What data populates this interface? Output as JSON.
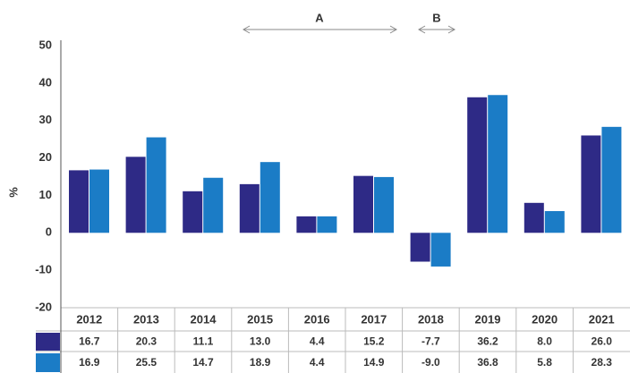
{
  "chart_data": {
    "type": "bar",
    "y_label": "%",
    "annotations": [
      "A",
      "B"
    ],
    "categories": [
      "2012",
      "2013",
      "2014",
      "2015",
      "2016",
      "2017",
      "2018",
      "2019",
      "2020",
      "2021"
    ],
    "series": [
      {
        "color": "#2e2a86",
        "values": [
          16.7,
          20.3,
          11.1,
          13.0,
          4.4,
          15.2,
          -7.7,
          36.2,
          8.0,
          26.0
        ],
        "value_labels": [
          "16.7",
          "20.3",
          "11.1",
          "13.0",
          "4.4",
          "15.2",
          "-7.7",
          "36.2",
          "8.0",
          "26.0"
        ]
      },
      {
        "color": "#1b7cc6",
        "values": [
          16.9,
          25.5,
          14.7,
          18.9,
          4.4,
          14.9,
          -9.0,
          36.8,
          5.8,
          28.3
        ],
        "value_labels": [
          "16.9",
          "25.5",
          "14.7",
          "18.9",
          "4.4",
          "14.9",
          "-9.0",
          "36.8",
          "5.8",
          "28.3"
        ]
      }
    ],
    "ylim": [
      -20,
      50
    ],
    "yticks": [
      -20,
      -10,
      0,
      10,
      20,
      30,
      40,
      50
    ],
    "grid": false
  }
}
